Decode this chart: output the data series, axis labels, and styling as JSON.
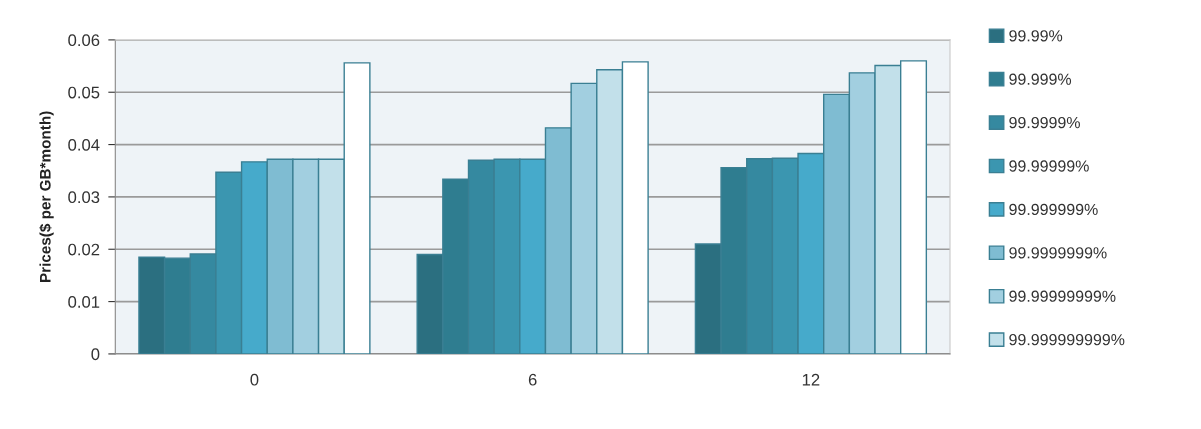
{
  "chart_data": {
    "type": "bar",
    "ylabel": "Prices($ per GB*month)",
    "categories": [
      "0",
      "6",
      "12"
    ],
    "ylim": [
      0,
      0.06
    ],
    "yticks": [
      0,
      0.01,
      0.02,
      0.03,
      0.04,
      0.05,
      0.06
    ],
    "grid": "y",
    "legend": "right",
    "series": [
      {
        "name": "99.99%",
        "color": "#2b6f80",
        "values": [
          0.0185,
          0.019,
          0.021
        ]
      },
      {
        "name": "99.999%",
        "color": "#2f7d90",
        "values": [
          0.0183,
          0.0334,
          0.0356
        ]
      },
      {
        "name": "99.9999%",
        "color": "#3589a0",
        "values": [
          0.0191,
          0.037,
          0.0373
        ]
      },
      {
        "name": "99.99999%",
        "color": "#3b96b0",
        "values": [
          0.0347,
          0.0372,
          0.0374
        ]
      },
      {
        "name": "99.999999%",
        "color": "#46aacb",
        "values": [
          0.0367,
          0.0372,
          0.0383
        ]
      },
      {
        "name": "99.9999999%",
        "color": "#7fbcd2",
        "values": [
          0.0372,
          0.0432,
          0.0496
        ]
      },
      {
        "name": "99.99999999%",
        "color": "#a2cfe0",
        "values": [
          0.0372,
          0.0517,
          0.0537
        ]
      },
      {
        "name": "99.999999999%",
        "color": "#c2e0ea",
        "values": [
          0.0372,
          0.0543,
          0.0551
        ]
      },
      {
        "color": "#ffffff",
        "values": [
          0.0556,
          0.0558,
          0.056
        ]
      }
    ]
  }
}
